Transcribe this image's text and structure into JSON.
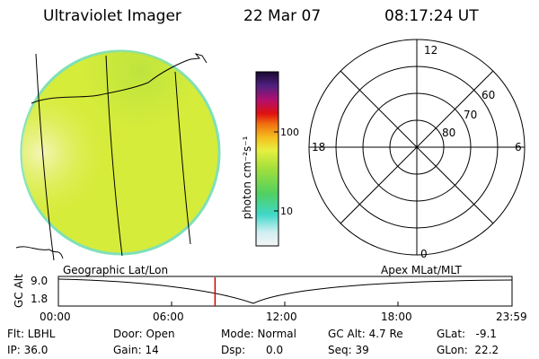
{
  "header": {
    "instrument": "Ultraviolet Imager",
    "date": "22 Mar 07",
    "time": "08:17:24 UT"
  },
  "colorbar": {
    "unit_label": "photon cm⁻²s⁻¹",
    "tick_high": "100",
    "tick_low": "10"
  },
  "polar_plot": {
    "mlt_top": "12",
    "mlt_left": "18",
    "mlt_right": "6",
    "mlt_bottom": "0",
    "lat_outer": "60",
    "lat_mid": "70",
    "lat_inner": "80"
  },
  "labels": {
    "geographic": "Geographic Lat/Lon",
    "apex": "Apex MLat/MLT"
  },
  "altitude_plot": {
    "axis_label": "GC Alt",
    "y_max": "9.0",
    "y_min": "1.8",
    "x_ticks": [
      "00:00",
      "06:00",
      "12:00",
      "18:00",
      "23:59"
    ],
    "marker_time_hours": 8.29
  },
  "footer": {
    "flt": "Flt: LBHL",
    "ip": "IP: 36.0",
    "door": "Door: Open",
    "gain": "Gain: 14",
    "mode": "Mode: Normal",
    "dsp": "Dsp:      0.0",
    "gc_alt": "GC Alt: 4.7 Re",
    "seq": "Seq: 39",
    "glat": "GLat:   -9.1",
    "glon": "GLon:  22.2"
  },
  "colors": {
    "disk_base": "#d6ec3a",
    "disk_rim": "#7fe0b8",
    "disk_bright": "#f1f590",
    "marker": "#d00000"
  }
}
